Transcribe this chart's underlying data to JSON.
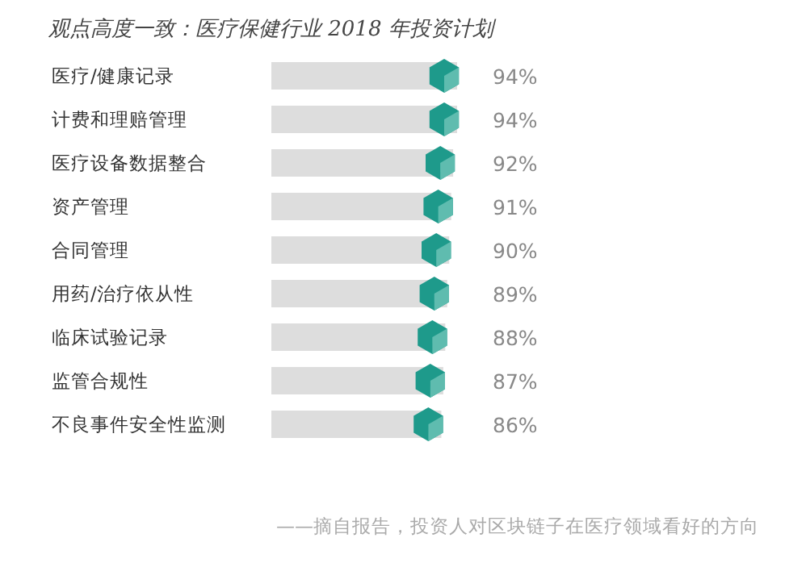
{
  "chart_data": {
    "type": "bar",
    "orientation": "horizontal",
    "title": "观点高度一致：医疗保健行业 2018 年投资计划",
    "categories": [
      "医疗/健康记录",
      "计费和理赔管理",
      "医疗设备数据整合",
      "资产管理",
      "合同管理",
      "用药/治疗依从性",
      "临床试验记录",
      "监管合规性",
      "不良事件安全性监测"
    ],
    "values": [
      94,
      94,
      92,
      91,
      90,
      89,
      88,
      87,
      86
    ],
    "value_labels": [
      "94%",
      "94%",
      "92%",
      "91%",
      "90%",
      "89%",
      "88%",
      "87%",
      "86%"
    ],
    "color": "#dddddd",
    "annotations": [
      "——摘自报告，投资人对区块链子在医疗领域看好的方向"
    ]
  }
}
